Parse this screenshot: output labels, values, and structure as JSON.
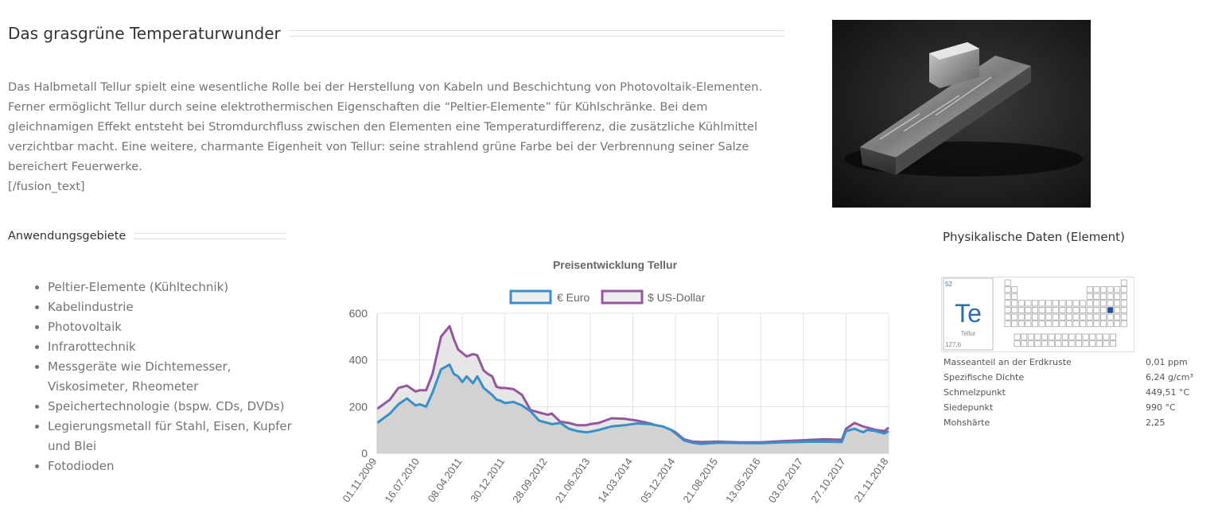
{
  "intro": {
    "title": "Das grasgrüne Temperaturwunder",
    "paragraph": "Das Halbmetall Tellur spielt eine wesentliche Rolle bei der Herstellung von Kabeln und Beschichtung von Photovoltaik-Elementen. Ferner ermöglicht Tellur durch seine elektrothermischen Eigenschaften die “Peltier-Elemente” für Kühlschränke. Bei dem gleichnamigen Effekt entsteht bei Stromdurchfluss zwischen den Elementen eine Temperaturdifferenz, die zusätzliche Kühlmittel verzichtbar macht. Eine weitere, charmante Eigenheit von Tellur: seine strahlend grüne Farbe bei der Verbrennung seiner Salze bereichert Feuerwerke.",
    "shortcode": "[/fusion_text]"
  },
  "applications": {
    "title": "Anwendungsgebiete",
    "items": [
      "Peltier-Elemente (Kühltechnik)",
      "Kabelindustrie",
      "Photovoltaik",
      "Infrarottechnik",
      "Messgeräte wie Dichtemesser, Viskosimeter, Rheometer",
      "Speichertechnologie (bspw. CDs, DVDs)",
      "Legierungsmetall für Stahl, Eisen, Kupfer und Blei",
      "Fotodioden"
    ]
  },
  "physical": {
    "title": "Physikalische Daten (Element)",
    "element": {
      "number": "52",
      "symbol": "Te",
      "name": "Tellur",
      "mass": "127,6"
    },
    "rows": [
      {
        "label": "Masseanteil an der Erdkruste",
        "value": "0,01 ppm"
      },
      {
        "label": "Spezifische Dichte",
        "value": "6,24 g/cm³"
      },
      {
        "label": "Schmelzpunkt",
        "value": "449,51 °C"
      },
      {
        "label": "Siedepunkt",
        "value": "990 °C"
      },
      {
        "label": "Mohshärte",
        "value": "2,25"
      }
    ]
  },
  "colors": {
    "euro": "#3a8fc8",
    "usd": "#94579f",
    "fill": "#d2d2d2",
    "highlight": "#1f4e9c"
  },
  "chart_data": {
    "type": "area",
    "title": "Preisentwicklung Tellur",
    "xlabel": "",
    "ylabel": "",
    "ylim": [
      0,
      600
    ],
    "yticks": [
      0,
      200,
      400,
      600
    ],
    "xticks": [
      "01.11.2009",
      "16.07.2010",
      "08.04.2011",
      "30.12.2011",
      "28.09.2012",
      "21.06.2013",
      "14.03.2014",
      "05.12.2014",
      "21.08.2015",
      "13.05.2016",
      "03.02.2017",
      "27.10.2017",
      "21.11.2018"
    ],
    "legend_position": "top",
    "x": [
      0,
      0.3,
      0.5,
      0.7,
      0.9,
      1.0,
      1.15,
      1.3,
      1.5,
      1.7,
      1.8,
      1.9,
      2.0,
      2.1,
      2.25,
      2.35,
      2.5,
      2.6,
      2.7,
      2.8,
      2.9,
      3.0,
      3.2,
      3.4,
      3.6,
      3.8,
      4.0,
      4.1,
      4.3,
      4.5,
      4.7,
      4.9,
      5.0,
      5.2,
      5.5,
      5.8,
      6.1,
      6.4,
      6.7,
      6.9,
      7.0,
      7.2,
      7.4,
      7.6,
      8.0,
      8.5,
      9.0,
      9.5,
      10.0,
      10.5,
      10.9,
      11.0,
      11.2,
      11.4,
      11.5,
      11.7,
      11.9,
      12.0
    ],
    "series": [
      {
        "name": "€ Euro",
        "values": [
          130,
          170,
          210,
          235,
          205,
          210,
          200,
          260,
          360,
          380,
          340,
          330,
          305,
          330,
          300,
          330,
          280,
          265,
          250,
          230,
          225,
          215,
          220,
          205,
          180,
          140,
          130,
          125,
          130,
          105,
          95,
          90,
          92,
          100,
          115,
          120,
          128,
          125,
          115,
          100,
          85,
          55,
          45,
          40,
          45,
          44,
          43,
          47,
          49,
          50,
          48,
          95,
          105,
          90,
          100,
          95,
          85,
          95
        ]
      },
      {
        "name": "$ US-Dollar",
        "values": [
          190,
          230,
          280,
          290,
          265,
          270,
          270,
          340,
          500,
          545,
          490,
          445,
          430,
          415,
          425,
          420,
          355,
          340,
          330,
          285,
          280,
          280,
          275,
          250,
          185,
          175,
          165,
          170,
          135,
          130,
          120,
          120,
          125,
          130,
          150,
          148,
          140,
          128,
          110,
          100,
          90,
          60,
          50,
          48,
          50,
          47,
          47,
          52,
          56,
          60,
          58,
          105,
          130,
          115,
          110,
          100,
          95,
          110
        ]
      }
    ]
  }
}
